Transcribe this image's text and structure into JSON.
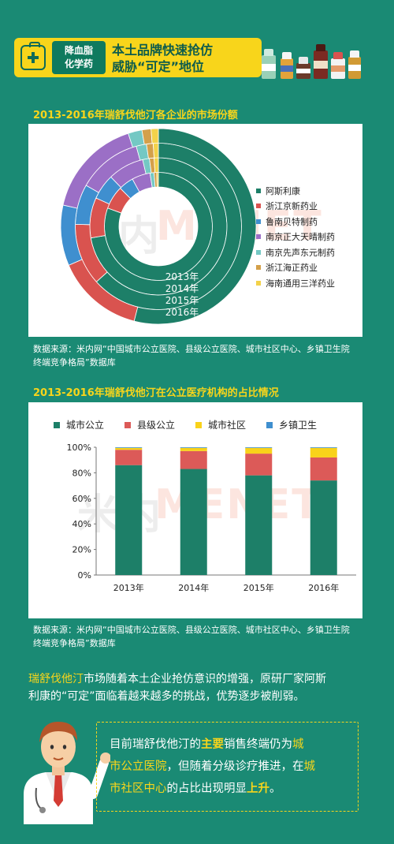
{
  "header": {
    "tag_line1": "降血脂",
    "tag_line2": "化学药",
    "title_line1": "本土品牌快速抢仿",
    "title_line2": "威胁“可定”地位"
  },
  "section1_title": "2013-2016年瑞舒伐他汀各企业的市场份额",
  "section2_title": "2013-2016年瑞舒伐他汀在公立医疗机构的占比情况",
  "watermark": {
    "part1": "米内",
    "part2": "MENET"
  },
  "note1": {
    "line1": "数据来源：米内网“中国城市公立医院、县级公立医院、城市社区中心、乡镇卫生院",
    "line2": "终端竞争格局”数据库"
  },
  "note2": {
    "line1": "数据来源：米内网“中国城市公立医院、县级公立医院、城市社区中心、乡镇卫生院",
    "line2": "终端竞争格局”数据库"
  },
  "paragraph": {
    "hl": "瑞舒伐他汀",
    "rest1": "市场随着本土企业抢仿意识的增强，原研厂家阿斯",
    "line2": "利康的“可定”面临着越来越多的挑战，优势逐步被削弱。"
  },
  "callout": {
    "l1a": "目前瑞舒伐他汀的",
    "l1b": "主要",
    "l1c": "销售终端仍为",
    "l1d": "城",
    "l2a": "市公立医院",
    "l2b": "，但随着分级诊疗推进，在",
    "l2c": "城",
    "l3a": "市社区中心",
    "l3b": "的占比出现明显",
    "l3c": "上升",
    "l3d": "。"
  },
  "colors": {
    "background": "#1a8a74",
    "accent": "#f8d51b"
  },
  "chart_data": [
    {
      "type": "pie",
      "variant": "multi-ring donut",
      "title": "2013-2016年瑞舒伐他汀各企业的市场份额",
      "rings_inner_to_outer": [
        "2013年",
        "2014年",
        "2015年",
        "2016年"
      ],
      "legend_position": "right",
      "series": [
        {
          "name": "阿斯利康",
          "color": "#1d7f68",
          "values": [
            80.5,
            72.3,
            63.4,
            54.0
          ]
        },
        {
          "name": "浙江京新药业",
          "color": "#d9534f",
          "values": [
            7.0,
            9.5,
            12.0,
            14.5
          ]
        },
        {
          "name": "鲁南贝特制药",
          "color": "#3f8fcf",
          "values": [
            4.5,
            6.0,
            7.8,
            10.0
          ]
        },
        {
          "name": "南京正大天晴制药",
          "color": "#9b6fc6",
          "values": [
            5.5,
            8.5,
            12.5,
            16.5
          ]
        },
        {
          "name": "南京先声东元制药",
          "color": "#74c8c4",
          "values": [
            1.2,
            1.6,
            2.0,
            2.3
          ]
        },
        {
          "name": "浙江海正药业",
          "color": "#d4a04a",
          "values": [
            0.8,
            1.1,
            1.3,
            1.5
          ]
        },
        {
          "name": "海南通用三洋药业",
          "color": "#f3d24a",
          "values": [
            0.5,
            1.0,
            1.0,
            1.2
          ]
        }
      ]
    },
    {
      "type": "bar",
      "variant": "stacked",
      "title": "2013-2016年瑞舒伐他汀在公立医疗机构的占比情况",
      "categories": [
        "2013年",
        "2014年",
        "2015年",
        "2016年"
      ],
      "ylim": [
        0,
        100
      ],
      "yticks": [
        "0%",
        "20%",
        "40%",
        "60%",
        "80%",
        "100%"
      ],
      "legend_position": "top",
      "series": [
        {
          "name": "城市公立",
          "color": "#1d7f68",
          "values": [
            86,
            83,
            78,
            74
          ]
        },
        {
          "name": "县级公立",
          "color": "#dc5a58",
          "values": [
            12,
            14,
            17,
            18
          ]
        },
        {
          "name": "城市社区",
          "color": "#f9d21a",
          "values": [
            1.5,
            2.5,
            4.5,
            7.5
          ]
        },
        {
          "name": "乡镇卫生",
          "color": "#3f8fcf",
          "values": [
            0.5,
            0.5,
            0.5,
            0.5
          ]
        }
      ]
    }
  ]
}
